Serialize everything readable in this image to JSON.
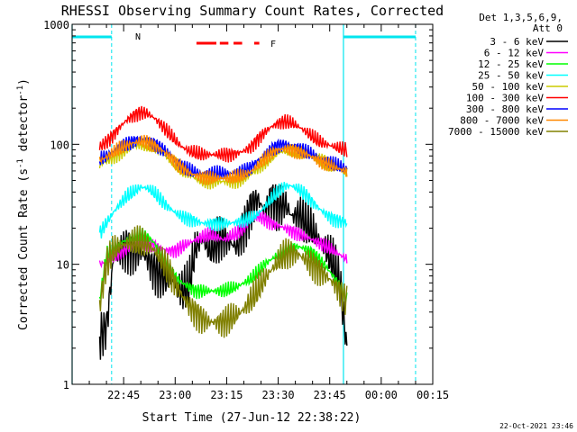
{
  "chart_data": {
    "type": "line",
    "title": "RHESSI Observing Summary Count Rates, Corrected",
    "xlabel": "Start Time (27-Jun-12 22:38:22)",
    "ylabel_parts": [
      "Corrected Count Rate (s",
      "-1",
      " detector",
      "-1",
      ")"
    ],
    "yscale": "log",
    "ylim": [
      1,
      1000
    ],
    "xlim_minutes": [
      -8,
      97
    ],
    "y_tick_labels": [
      "1000",
      "100",
      "10",
      "1"
    ],
    "x_tick_labels": [
      "22:45",
      "23:00",
      "23:15",
      "23:30",
      "23:45",
      "00:00",
      "00:15"
    ],
    "legend_header": [
      "Det 1,3,5,6,9,",
      "Att 0"
    ],
    "footer_timestamp": "22-Oct-2021 23:46",
    "annotations": {
      "night_marker": "N",
      "flare_marker": "F"
    },
    "night_intervals_minutes": [
      [
        -8,
        3.5
      ],
      [
        71,
        92
      ]
    ],
    "flare_segments_minutes": [
      [
        28.2,
        34
      ],
      [
        35,
        37.5
      ],
      [
        39,
        41.5
      ],
      [
        45,
        46.5
      ]
    ],
    "series": [
      {
        "name": "3 - 6 keV",
        "color": "#000000",
        "x": [
          0,
          2,
          4,
          6,
          8,
          10,
          12,
          14,
          16,
          18,
          20,
          22,
          24,
          26,
          28,
          30,
          32,
          34,
          36,
          38,
          40,
          42,
          44,
          46,
          48,
          50,
          52,
          54,
          56,
          58,
          60,
          62,
          64,
          66,
          68,
          70,
          72
        ],
        "y": [
          2.5,
          3,
          11,
          13,
          14,
          13,
          12.5,
          11,
          9,
          8,
          7.5,
          7,
          6,
          6.5,
          14,
          16,
          13,
          15,
          17,
          15,
          14,
          20,
          30,
          35,
          28,
          36,
          30,
          32,
          25,
          26,
          22,
          19,
          16,
          13,
          10,
          7,
          2
        ]
      },
      {
        "name": "6 - 12 keV",
        "color": "#ff00ff",
        "x": [
          0,
          2,
          4,
          6,
          8,
          10,
          12,
          14,
          16,
          18,
          20,
          22,
          24,
          26,
          28,
          30,
          32,
          34,
          36,
          38,
          40,
          42,
          44,
          46,
          48,
          50,
          52,
          54,
          56,
          58,
          60,
          62,
          64,
          66,
          68,
          70,
          72
        ],
        "y": [
          10,
          10.5,
          11.5,
          12.5,
          13.5,
          14.5,
          15,
          15,
          14.5,
          13.5,
          13,
          13,
          14,
          15,
          16,
          17,
          17.5,
          17,
          16,
          17,
          18,
          20,
          23,
          25,
          24,
          22,
          21,
          20,
          19,
          18,
          17,
          16,
          15,
          14,
          13,
          12,
          11
        ]
      },
      {
        "name": "12 - 25 keV",
        "color": "#00ff00",
        "x": [
          0,
          2,
          4,
          6,
          8,
          10,
          12,
          14,
          16,
          18,
          20,
          22,
          24,
          26,
          28,
          30,
          32,
          34,
          36,
          38,
          40,
          42,
          44,
          46,
          48,
          50,
          52,
          54,
          56,
          58,
          60,
          62,
          64,
          66,
          68,
          70,
          72
        ],
        "y": [
          5,
          12,
          14,
          15,
          16,
          17,
          18,
          17,
          15,
          12,
          9.5,
          8,
          7,
          6.5,
          6,
          6,
          6,
          6,
          6,
          6.2,
          6.5,
          7,
          7.5,
          8.5,
          10,
          11,
          12,
          13,
          14,
          14,
          13.5,
          12.5,
          11,
          9.5,
          8,
          6.5,
          5
        ]
      },
      {
        "name": "25 - 50 keV",
        "color": "#00ffff",
        "x": [
          0,
          2,
          4,
          6,
          8,
          10,
          12,
          14,
          16,
          18,
          20,
          22,
          24,
          26,
          28,
          30,
          32,
          34,
          36,
          38,
          40,
          42,
          44,
          46,
          48,
          50,
          52,
          54,
          56,
          58,
          60,
          62,
          64,
          66,
          68,
          70,
          72
        ],
        "y": [
          18,
          22,
          27,
          32,
          37,
          40,
          44,
          43,
          39,
          34,
          30,
          27,
          25,
          24,
          23,
          22,
          22,
          22,
          22,
          22,
          22.5,
          23,
          24,
          26,
          30,
          35,
          40,
          45,
          45,
          42,
          38,
          33,
          29,
          26,
          24,
          23,
          22
        ]
      },
      {
        "name": "50 - 100 keV",
        "color": "#cccc00",
        "x": [
          0,
          2,
          4,
          6,
          8,
          10,
          12,
          14,
          16,
          18,
          20,
          22,
          24,
          26,
          28,
          30,
          32,
          34,
          36,
          38,
          40,
          42,
          44,
          46,
          48,
          50,
          52,
          54,
          56,
          58,
          60,
          62,
          64,
          66,
          68,
          70,
          72
        ],
        "y": [
          68,
          72,
          78,
          85,
          91,
          96,
          100,
          98,
          93,
          85,
          77,
          68,
          61,
          56,
          52,
          50,
          49,
          49,
          49,
          49,
          50,
          52,
          56,
          62,
          70,
          78,
          85,
          88,
          87,
          85,
          82,
          78,
          74,
          70,
          66,
          62,
          58
        ]
      },
      {
        "name": "100 - 300 keV",
        "color": "#ff0000",
        "x": [
          0,
          2,
          4,
          6,
          8,
          10,
          12,
          14,
          16,
          18,
          20,
          22,
          24,
          26,
          28,
          30,
          32,
          34,
          36,
          38,
          40,
          42,
          44,
          46,
          48,
          50,
          52,
          54,
          56,
          58,
          60,
          62,
          64,
          66,
          68,
          70,
          72
        ],
        "y": [
          95,
          105,
          120,
          140,
          160,
          175,
          185,
          180,
          165,
          145,
          125,
          108,
          95,
          88,
          84,
          82,
          82,
          82,
          82,
          82,
          84,
          88,
          95,
          110,
          125,
          140,
          150,
          155,
          150,
          140,
          128,
          115,
          105,
          100,
          96,
          92,
          90
        ]
      },
      {
        "name": "300 - 800 keV",
        "color": "#0000ff",
        "x": [
          0,
          2,
          4,
          6,
          8,
          10,
          12,
          14,
          16,
          18,
          20,
          22,
          24,
          26,
          28,
          30,
          32,
          34,
          36,
          38,
          40,
          42,
          44,
          46,
          48,
          50,
          52,
          54,
          56,
          58,
          60,
          62,
          64,
          66,
          68,
          70,
          72
        ],
        "y": [
          75,
          80,
          87,
          95,
          102,
          107,
          110,
          108,
          102,
          93,
          84,
          74,
          66,
          61,
          58,
          57,
          57,
          57,
          57,
          57,
          58,
          60,
          64,
          72,
          82,
          92,
          98,
          100,
          98,
          94,
          88,
          82,
          76,
          72,
          68,
          65,
          62
        ]
      },
      {
        "name": "800 - 7000 keV",
        "color": "#ff8800",
        "x": [
          0,
          2,
          4,
          6,
          8,
          10,
          12,
          14,
          16,
          18,
          20,
          22,
          24,
          26,
          28,
          30,
          32,
          34,
          36,
          38,
          40,
          42,
          44,
          46,
          48,
          50,
          52,
          54,
          56,
          58,
          60,
          62,
          64,
          66,
          68,
          70,
          72
        ],
        "y": [
          73,
          78,
          85,
          92,
          98,
          103,
          106,
          104,
          98,
          90,
          81,
          72,
          64,
          58,
          55,
          53,
          52,
          52,
          52,
          52,
          53,
          55,
          59,
          66,
          75,
          85,
          90,
          92,
          90,
          87,
          83,
          78,
          73,
          69,
          65,
          62,
          59
        ]
      },
      {
        "name": "7000 - 15000 keV",
        "color": "#808000",
        "x": [
          0,
          2,
          4,
          6,
          8,
          10,
          12,
          14,
          16,
          18,
          20,
          22,
          24,
          26,
          28,
          30,
          32,
          34,
          36,
          38,
          40,
          42,
          44,
          46,
          48,
          50,
          52,
          54,
          56,
          58,
          60,
          62,
          64,
          66,
          68,
          70,
          72
        ],
        "y": [
          4.5,
          10,
          13,
          14,
          15,
          15,
          15,
          14.5,
          13,
          11,
          9,
          7,
          5.5,
          4.5,
          4,
          3.5,
          3.3,
          3.3,
          3.3,
          3.5,
          3.8,
          4.2,
          5,
          6,
          7.5,
          9,
          10.5,
          12,
          12.5,
          12,
          11,
          10,
          9,
          8,
          7,
          6,
          5
        ]
      }
    ]
  }
}
